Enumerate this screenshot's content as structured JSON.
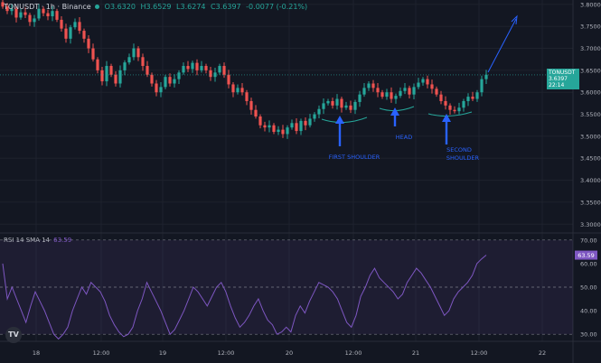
{
  "header": {
    "symbol": "TONUSDT · 1h · Binance",
    "open": "O3.6320",
    "high": "H3.6529",
    "low": "L3.6274",
    "close": "C3.6397",
    "change": "-0.0077 (-0.21%)"
  },
  "price_tag": {
    "symbol": "TONUSDT",
    "price": "3.6397",
    "countdown": "22:14"
  },
  "rsi_header": {
    "label": "RSI 14 SMA 14",
    "value": "63.59"
  },
  "rsi_tag": "63.59",
  "logo": "TV",
  "annotations": {
    "first_shoulder": "FIRST SHOULDER",
    "head": "HEAD",
    "second_shoulder_1": "SECOND",
    "second_shoulder_2": "SHOULDER"
  },
  "colors": {
    "background": "#131722",
    "up": "#26a69a",
    "down": "#ef5350",
    "rsi": "#7e57c2",
    "annotation": "#2962ff",
    "neckline": "#26a69a"
  },
  "chart_data": [
    {
      "type": "candlestick",
      "title": "TONUSDT · 1h · Binance",
      "x_ticks": [
        "18",
        "12:00",
        "19",
        "12:00",
        "20",
        "12:00",
        "21",
        "12:00",
        "22"
      ],
      "y_ticks": [
        "3.8000",
        "3.7500",
        "3.7000",
        "3.6500",
        "3.6000",
        "3.5500",
        "3.5000",
        "3.4500",
        "3.4000",
        "3.3500",
        "3.3000"
      ],
      "ylim": [
        3.28,
        3.81
      ],
      "candle_count": 108,
      "closes": [
        3.795,
        3.785,
        3.79,
        3.77,
        3.782,
        3.776,
        3.76,
        3.768,
        3.79,
        3.78,
        3.773,
        3.785,
        3.765,
        3.745,
        3.722,
        3.748,
        3.76,
        3.74,
        3.722,
        3.7,
        3.675,
        3.65,
        3.625,
        3.66,
        3.64,
        3.62,
        3.65,
        3.668,
        3.68,
        3.7,
        3.68,
        3.66,
        3.64,
        3.62,
        3.6,
        3.612,
        3.635,
        3.62,
        3.63,
        3.645,
        3.66,
        3.653,
        3.667,
        3.65,
        3.66,
        3.65,
        3.635,
        3.645,
        3.66,
        3.64,
        3.618,
        3.6,
        3.61,
        3.6,
        3.58,
        3.56,
        3.545,
        3.525,
        3.52,
        3.525,
        3.51,
        3.515,
        3.505,
        3.52,
        3.53,
        3.512,
        3.535,
        3.525,
        3.54,
        3.55,
        3.562,
        3.575,
        3.58,
        3.57,
        3.585,
        3.565,
        3.57,
        3.56,
        3.578,
        3.595,
        3.61,
        3.62,
        3.61,
        3.6,
        3.59,
        3.6,
        3.585,
        3.592,
        3.603,
        3.61,
        3.595,
        3.612,
        3.622,
        3.63,
        3.618,
        3.608,
        3.595,
        3.58,
        3.57,
        3.56,
        3.557,
        3.565,
        3.58,
        3.59,
        3.585,
        3.6,
        3.63,
        3.64
      ],
      "last_price": 3.6397,
      "annotations": [
        "FIRST SHOULDER",
        "HEAD",
        "SECOND SHOULDER"
      ]
    },
    {
      "type": "line",
      "title": "RSI 14 SMA 14",
      "y_ticks": [
        "70.00",
        "60.00",
        "50.00",
        "40.00",
        "30.00"
      ],
      "ylim": [
        27,
        73
      ],
      "levels": [
        70,
        50,
        30
      ],
      "values": [
        60,
        45,
        50,
        45,
        40,
        35,
        42,
        48,
        44,
        40,
        35,
        30,
        28,
        30,
        33,
        40,
        45,
        50,
        47,
        52,
        50,
        48,
        44,
        38,
        34,
        31,
        29,
        30,
        33,
        40,
        45,
        52,
        48,
        44,
        40,
        35,
        30,
        32,
        36,
        40,
        45,
        50,
        48,
        45,
        42,
        46,
        50,
        52,
        48,
        42,
        37,
        33,
        35,
        38,
        42,
        45,
        40,
        36,
        34,
        30,
        31,
        33,
        31,
        38,
        42,
        39,
        44,
        48,
        52,
        51,
        50,
        48,
        45,
        40,
        35,
        33,
        38,
        46,
        50,
        55,
        58,
        54,
        52,
        50,
        48,
        45,
        47,
        52,
        55,
        58,
        56,
        53,
        50,
        46,
        42,
        38,
        40,
        45,
        48,
        50,
        52,
        55,
        60,
        62,
        63.59
      ]
    }
  ]
}
